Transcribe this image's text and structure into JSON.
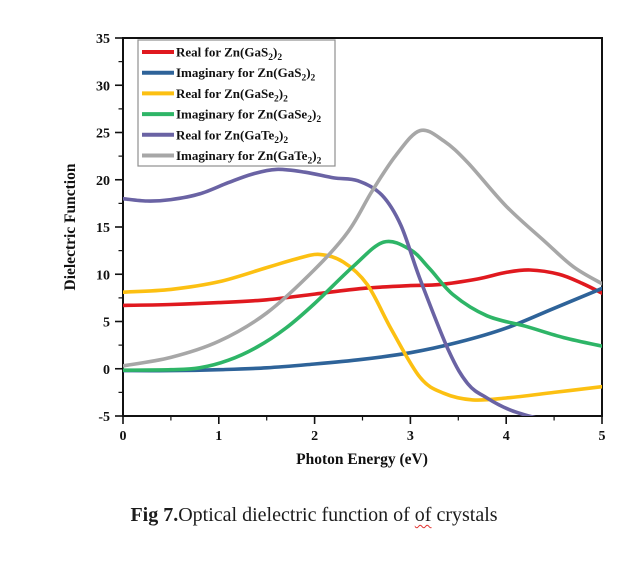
{
  "window": {
    "background": "#ffffff"
  },
  "caption": {
    "prefix": "Fig 7.",
    "body": "Optical dielectric function of ",
    "misspelled_word": "of",
    "suffix": " crystals",
    "squiggle_color": "#e0312e"
  },
  "chart_data": {
    "type": "line",
    "title": "",
    "xlabel": "Photon Energy (eV)",
    "ylabel": "Dielectric Function",
    "xlim": [
      0,
      5
    ],
    "ylim": [
      -5,
      35
    ],
    "x_ticks": [
      0,
      1,
      2,
      3,
      4,
      5
    ],
    "y_ticks": [
      -5,
      0,
      5,
      10,
      15,
      20,
      25,
      30,
      35
    ],
    "grid": false,
    "legend_position": "top-left",
    "frame_color": "#111111",
    "series": [
      {
        "name": "Real for Zn(GaS_2)_2",
        "color": "#e0191f",
        "points": [
          [
            0,
            6.7
          ],
          [
            0.5,
            6.8
          ],
          [
            1,
            7.0
          ],
          [
            1.5,
            7.3
          ],
          [
            2,
            7.9
          ],
          [
            2.5,
            8.5
          ],
          [
            3,
            8.8
          ],
          [
            3.3,
            8.9
          ],
          [
            3.7,
            9.5
          ],
          [
            4,
            10.2
          ],
          [
            4.25,
            10.45
          ],
          [
            4.55,
            10.0
          ],
          [
            4.8,
            9.0
          ],
          [
            5,
            8.0
          ]
        ]
      },
      {
        "name": "Imaginary for Zn(GaS_2)_2",
        "color": "#2e6399",
        "points": [
          [
            0,
            -0.2
          ],
          [
            0.5,
            -0.2
          ],
          [
            1,
            -0.1
          ],
          [
            1.5,
            0.1
          ],
          [
            2,
            0.5
          ],
          [
            2.5,
            1.0
          ],
          [
            3,
            1.7
          ],
          [
            3.5,
            2.8
          ],
          [
            4,
            4.3
          ],
          [
            4.5,
            6.4
          ],
          [
            5,
            8.5
          ]
        ]
      },
      {
        "name": "Real for Zn(GaSe_2)_2",
        "color": "#fcc012",
        "points": [
          [
            0,
            8.1
          ],
          [
            0.5,
            8.4
          ],
          [
            1,
            9.2
          ],
          [
            1.5,
            10.7
          ],
          [
            1.8,
            11.6
          ],
          [
            2.05,
            12.1
          ],
          [
            2.3,
            11.3
          ],
          [
            2.55,
            8.9
          ],
          [
            2.8,
            4.2
          ],
          [
            3.1,
            -0.9
          ],
          [
            3.35,
            -2.6
          ],
          [
            3.65,
            -3.3
          ],
          [
            4,
            -3.1
          ],
          [
            4.5,
            -2.5
          ],
          [
            5,
            -1.9
          ]
        ]
      },
      {
        "name": "Imaginary for Zn(GaSe_2)_2",
        "color": "#2eb567",
        "points": [
          [
            0,
            -0.15
          ],
          [
            0.5,
            -0.1
          ],
          [
            0.8,
            0.1
          ],
          [
            1.1,
            0.9
          ],
          [
            1.4,
            2.3
          ],
          [
            1.7,
            4.3
          ],
          [
            2,
            6.9
          ],
          [
            2.4,
            10.8
          ],
          [
            2.72,
            13.4
          ],
          [
            3,
            12.6
          ],
          [
            3.2,
            10.6
          ],
          [
            3.45,
            7.8
          ],
          [
            3.8,
            5.6
          ],
          [
            4.2,
            4.5
          ],
          [
            4.6,
            3.3
          ],
          [
            5,
            2.4
          ]
        ]
      },
      {
        "name": "Real for Zn(GaTe_2)_2",
        "color": "#6a63a4",
        "points": [
          [
            0,
            18.0
          ],
          [
            0.25,
            17.75
          ],
          [
            0.5,
            17.9
          ],
          [
            0.8,
            18.5
          ],
          [
            1.1,
            19.7
          ],
          [
            1.35,
            20.6
          ],
          [
            1.6,
            21.1
          ],
          [
            1.9,
            20.8
          ],
          [
            2.2,
            20.2
          ],
          [
            2.45,
            19.9
          ],
          [
            2.7,
            18.4
          ],
          [
            2.9,
            15.2
          ],
          [
            3.1,
            9.5
          ],
          [
            3.4,
            1.9
          ],
          [
            3.6,
            -1.6
          ],
          [
            3.8,
            -3.1
          ],
          [
            4.05,
            -4.4
          ],
          [
            4.35,
            -5.3
          ],
          [
            4.6,
            -5.8
          ]
        ]
      },
      {
        "name": "Imaginary for Zn(GaTe_2)_2",
        "color": "#a7a7a7",
        "points": [
          [
            0,
            0.3
          ],
          [
            0.5,
            1.2
          ],
          [
            1,
            2.9
          ],
          [
            1.5,
            5.9
          ],
          [
            2,
            10.5
          ],
          [
            2.35,
            14.5
          ],
          [
            2.6,
            18.8
          ],
          [
            2.85,
            22.6
          ],
          [
            3.1,
            25.2
          ],
          [
            3.35,
            24.1
          ],
          [
            3.6,
            21.8
          ],
          [
            4,
            17.2
          ],
          [
            4.4,
            13.5
          ],
          [
            4.7,
            10.8
          ],
          [
            5,
            9.0
          ]
        ]
      }
    ]
  }
}
